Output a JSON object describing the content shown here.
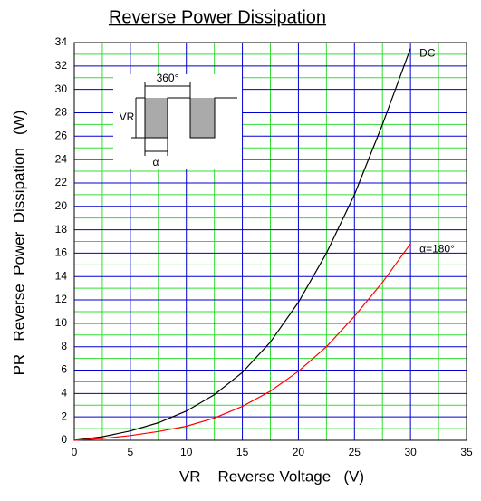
{
  "chart_data": {
    "type": "line",
    "title": "Reverse Power Dissipation",
    "x_label": "VR    Reverse Voltage   (V)",
    "y_label": "PR   Reverse  Power  Dissipation   (W)",
    "x": [
      0,
      2.5,
      5,
      7.5,
      10,
      12.5,
      15,
      17.5,
      20,
      22.5,
      25,
      27.5,
      30
    ],
    "series": [
      {
        "name": "DC",
        "color": "#000000",
        "values": [
          0,
          0.3,
          0.8,
          1.5,
          2.5,
          3.9,
          5.8,
          8.4,
          11.8,
          16,
          21,
          27,
          33.5
        ]
      },
      {
        "name": "α=180°",
        "color": "#ff0000",
        "values": [
          0,
          0.15,
          0.4,
          0.75,
          1.2,
          1.9,
          2.9,
          4.2,
          5.9,
          8,
          10.6,
          13.5,
          16.8
        ]
      }
    ],
    "xlim": [
      0,
      35
    ],
    "ylim": [
      0,
      34
    ],
    "xticks": [
      0,
      5,
      10,
      15,
      20,
      25,
      30,
      35
    ],
    "yticks": [
      0,
      2,
      4,
      6,
      8,
      10,
      12,
      14,
      16,
      18,
      20,
      22,
      24,
      26,
      28,
      30,
      32,
      34
    ],
    "grid": true,
    "grid_colors": {
      "major": "#0000cc",
      "minor": "#33dd33"
    },
    "inset": {
      "period_label": "360°",
      "amplitude_label": "VR",
      "width_label": "α"
    }
  }
}
